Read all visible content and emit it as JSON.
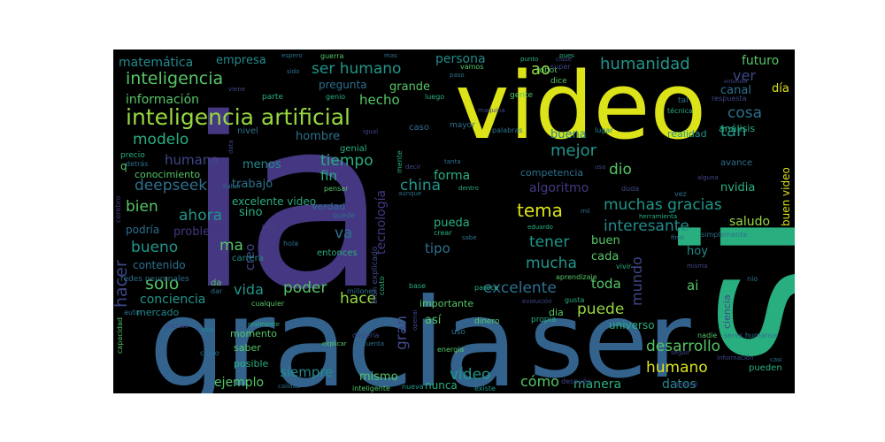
{
  "palette": {
    "deep_purple": "#482677",
    "purple": "#453781",
    "indigo": "#3f4788",
    "blue": "#33638d",
    "steel": "#2d708e",
    "teal": "#238a8d",
    "sea": "#1f968b",
    "green": "#29af7f",
    "lime_green": "#55c667",
    "yellow_green": "#95d840",
    "yellow": "#dce319"
  },
  "words": [
    {
      "text": "ia",
      "color": "purple"
    },
    {
      "text": "si",
      "color": "green"
    },
    {
      "text": "gracia",
      "color": "blue"
    },
    {
      "text": "video",
      "color": "yellow"
    },
    {
      "text": "ser",
      "color": "blue"
    },
    {
      "text": "inteligencia artificial",
      "color": "yellow_green"
    },
    {
      "text": "inteligencia",
      "color": "lime_green"
    },
    {
      "text": "ser humano",
      "color": "sea"
    },
    {
      "text": "humanidad",
      "color": "sea"
    },
    {
      "text": "matemática",
      "color": "teal"
    },
    {
      "text": "empresa",
      "color": "teal"
    },
    {
      "text": "persona",
      "color": "teal"
    },
    {
      "text": "ao",
      "color": "yellow_green"
    },
    {
      "text": "información",
      "color": "lime_green"
    },
    {
      "text": "pregunta",
      "color": "steel"
    },
    {
      "text": "grande",
      "color": "lime_green"
    },
    {
      "text": "hecho",
      "color": "lime_green"
    },
    {
      "text": "futuro",
      "color": "lime_green"
    },
    {
      "text": "ver",
      "color": "indigo"
    },
    {
      "text": "canal",
      "color": "steel"
    },
    {
      "text": "día",
      "color": "yellow"
    },
    {
      "text": "cosa",
      "color": "steel"
    },
    {
      "text": "tan",
      "color": "sea"
    },
    {
      "text": "modelo",
      "color": "green"
    },
    {
      "text": "mejor",
      "color": "sea"
    },
    {
      "text": "humana",
      "color": "indigo"
    },
    {
      "text": "tiempo",
      "color": "green"
    },
    {
      "text": "dio",
      "color": "lime_green"
    },
    {
      "text": "deepseek",
      "color": "steel"
    },
    {
      "text": "menos",
      "color": "teal"
    },
    {
      "text": "fin",
      "color": "green"
    },
    {
      "text": "forma",
      "color": "green"
    },
    {
      "text": "china",
      "color": "sea"
    },
    {
      "text": "algoritmo",
      "color": "purple"
    },
    {
      "text": "muchas gracias",
      "color": "sea"
    },
    {
      "text": "bien",
      "color": "lime_green"
    },
    {
      "text": "ahora",
      "color": "sea"
    },
    {
      "text": "tema",
      "color": "yellow"
    },
    {
      "text": "interesante",
      "color": "teal"
    },
    {
      "text": "saludo",
      "color": "yellow_green"
    },
    {
      "text": "bueno",
      "color": "sea"
    },
    {
      "text": "ma",
      "color": "lime_green"
    },
    {
      "text": "va",
      "color": "steel"
    },
    {
      "text": "tener",
      "color": "sea"
    },
    {
      "text": "buen",
      "color": "lime_green"
    },
    {
      "text": "cada",
      "color": "lime_green"
    },
    {
      "text": "hacer",
      "color": "indigo"
    },
    {
      "text": "solo",
      "color": "lime_green"
    },
    {
      "text": "poder",
      "color": "lime_green"
    },
    {
      "text": "mucha",
      "color": "sea"
    },
    {
      "text": "mundo",
      "color": "indigo"
    },
    {
      "text": "toda",
      "color": "lime_green"
    },
    {
      "text": "vida",
      "color": "sea"
    },
    {
      "text": "hace",
      "color": "yellow_green"
    },
    {
      "text": "excelente",
      "color": "steel"
    },
    {
      "text": "puede",
      "color": "yellow_green"
    },
    {
      "text": "ai",
      "color": "lime_green"
    },
    {
      "text": "conciencia",
      "color": "sea"
    },
    {
      "text": "desarrollo",
      "color": "lime_green"
    },
    {
      "text": "humano",
      "color": "yellow"
    },
    {
      "text": "vídeo",
      "color": "sea"
    },
    {
      "text": "cómo",
      "color": "lime_green"
    },
    {
      "text": "manera",
      "color": "green"
    },
    {
      "text": "datos",
      "color": "teal"
    },
    {
      "text": "siempre",
      "color": "teal"
    },
    {
      "text": "mismo",
      "color": "lime_green"
    },
    {
      "text": "ejemplo",
      "color": "lime_green"
    },
    {
      "text": "nunca",
      "color": "green"
    },
    {
      "text": "buena",
      "color": "teal"
    },
    {
      "text": "realidad",
      "color": "sea"
    },
    {
      "text": "análisis",
      "color": "green"
    },
    {
      "text": "hoy",
      "color": "teal"
    },
    {
      "text": "buen video",
      "color": "yellow"
    },
    {
      "text": "nvidia",
      "color": "green"
    },
    {
      "text": "hombre",
      "color": "steel"
    },
    {
      "text": "gran",
      "color": "indigo"
    },
    {
      "text": "tecnología",
      "color": "purple"
    },
    {
      "text": "creo",
      "color": "indigo"
    },
    {
      "text": "sino",
      "color": "green"
    },
    {
      "text": "problema",
      "color": "purple"
    },
    {
      "text": "trabajo",
      "color": "steel"
    },
    {
      "text": "excelente video",
      "color": "green"
    },
    {
      "text": "tipo",
      "color": "steel"
    },
    {
      "text": "pueda",
      "color": "green"
    },
    {
      "text": "universo",
      "color": "green"
    },
    {
      "text": "así",
      "color": "lime_green"
    },
    {
      "text": "contenido",
      "color": "steel"
    },
    {
      "text": "podría",
      "color": "steel"
    },
    {
      "text": "mercado",
      "color": "teal"
    },
    {
      "text": "competencia",
      "color": "steel"
    },
    {
      "text": "conocimiento",
      "color": "lime_green"
    },
    {
      "text": "momento",
      "color": "lime_green"
    },
    {
      "text": "saber",
      "color": "lime_green"
    },
    {
      "text": "posible",
      "color": "green"
    },
    {
      "text": "importante",
      "color": "lime_green"
    },
    {
      "text": "carrera",
      "color": "teal"
    },
    {
      "text": "verdad",
      "color": "steel"
    },
    {
      "text": "entonces",
      "color": "green"
    },
    {
      "text": "avance",
      "color": "steel"
    },
    {
      "text": "dia",
      "color": "lime_green"
    },
    {
      "text": "ciencia",
      "color": "indigo"
    },
    {
      "text": "pueden",
      "color": "green"
    },
    {
      "text": "caso",
      "color": "steel"
    },
    {
      "text": "genial",
      "color": "green"
    },
    {
      "text": "nivel",
      "color": "steel"
    },
    {
      "text": "mayor",
      "color": "steel"
    },
    {
      "text": "palabras",
      "color": "steel"
    },
    {
      "text": "lugar",
      "color": "teal"
    },
    {
      "text": "técnica",
      "color": "green"
    },
    {
      "text": "tal",
      "color": "steel"
    },
    {
      "text": "respuesta",
      "color": "indigo"
    },
    {
      "text": "cerebro",
      "color": "purple"
    },
    {
      "text": "precio",
      "color": "green"
    },
    {
      "text": "detrás",
      "color": "steel"
    },
    {
      "text": "q",
      "color": "lime_green"
    },
    {
      "text": "redes neuronales",
      "color": "steel"
    },
    {
      "text": "capacidad",
      "color": "lime_green"
    },
    {
      "text": "sólo",
      "color": "teal"
    },
    {
      "text": "chino",
      "color": "steel"
    },
    {
      "text": "incluso",
      "color": "indigo"
    },
    {
      "text": "realmente",
      "color": "green"
    },
    {
      "text": "auto",
      "color": "steel"
    },
    {
      "text": "da",
      "color": "lime_green"
    },
    {
      "text": "dar",
      "color": "steel"
    },
    {
      "text": "cualquier",
      "color": "lime_green"
    },
    {
      "text": "millones",
      "color": "steel"
    },
    {
      "text": "costo",
      "color": "green"
    },
    {
      "text": "bien explicado",
      "color": "indigo"
    },
    {
      "text": "base",
      "color": "green"
    },
    {
      "text": "parece",
      "color": "green"
    },
    {
      "text": "aprendizaje",
      "color": "lime_green"
    },
    {
      "text": "evolución",
      "color": "indigo"
    },
    {
      "text": "gusta",
      "color": "green"
    },
    {
      "text": "propia",
      "color": "green"
    },
    {
      "text": "dinero",
      "color": "lime_green"
    },
    {
      "text": "uso",
      "color": "steel"
    },
    {
      "text": "energía",
      "color": "lime_green"
    },
    {
      "text": "debería",
      "color": "indigo"
    },
    {
      "text": "explicar",
      "color": "lime_green"
    },
    {
      "text": "cuenta",
      "color": "steel"
    },
    {
      "text": "openai",
      "color": "indigo"
    },
    {
      "text": "nueva",
      "color": "sea"
    },
    {
      "text": "inteligente",
      "color": "lime_green"
    },
    {
      "text": "calidad",
      "color": "steel"
    },
    {
      "text": "existe",
      "color": "sea"
    },
    {
      "text": "después",
      "color": "indigo"
    },
    {
      "text": "general",
      "color": "indigo"
    },
    {
      "text": "casi",
      "color": "steel"
    },
    {
      "text": "información",
      "color": "indigo"
    },
    {
      "text": "seres humanos",
      "color": "steel"
    },
    {
      "text": "nadie",
      "color": "lime_green"
    },
    {
      "text": "seguir",
      "color": "indigo"
    },
    {
      "text": "nio",
      "color": "steel"
    },
    {
      "text": "misma",
      "color": "indigo"
    },
    {
      "text": "final",
      "color": "steel"
    },
    {
      "text": "simplemente",
      "color": "steel"
    },
    {
      "text": "vez",
      "color": "steel"
    },
    {
      "text": "alguna",
      "color": "indigo"
    },
    {
      "text": "herramienta",
      "color": "green"
    },
    {
      "text": "mil",
      "color": "steel"
    },
    {
      "text": "duda",
      "color": "indigo"
    },
    {
      "text": "vivir",
      "color": "green"
    },
    {
      "text": "eduardo",
      "color": "green"
    },
    {
      "text": "crear",
      "color": "green"
    },
    {
      "text": "sabe",
      "color": "steel"
    },
    {
      "text": "dentro",
      "color": "green"
    },
    {
      "text": "tanta",
      "color": "steel"
    },
    {
      "text": "decir",
      "color": "indigo"
    },
    {
      "text": "aunque",
      "color": "steel"
    },
    {
      "text": "queda",
      "color": "steel"
    },
    {
      "text": "pensar",
      "color": "lime_green"
    },
    {
      "text": "mente",
      "color": "green"
    },
    {
      "text": "hola",
      "color": "steel"
    },
    {
      "text": "lado",
      "color": "indigo"
    },
    {
      "text": "haber",
      "color": "steel"
    },
    {
      "text": "data",
      "color": "indigo"
    },
    {
      "text": "parte",
      "color": "green"
    },
    {
      "text": "viene",
      "color": "indigo"
    },
    {
      "text": "genio",
      "color": "green"
    },
    {
      "text": "luego",
      "color": "green"
    },
    {
      "text": "gente",
      "color": "lime_green"
    },
    {
      "text": "dice",
      "color": "lime_green"
    },
    {
      "text": "maquina",
      "color": "indigo"
    },
    {
      "text": "clase",
      "color": "indigo"
    },
    {
      "text": "robot",
      "color": "lime_green"
    },
    {
      "text": "super",
      "color": "indigo"
    },
    {
      "text": "pues",
      "color": "green"
    },
    {
      "text": "punto",
      "color": "green"
    },
    {
      "text": "paso",
      "color": "steel"
    },
    {
      "text": "vamos",
      "color": "lime_green"
    },
    {
      "text": "guerra",
      "color": "lime_green"
    },
    {
      "text": "espero",
      "color": "steel"
    },
    {
      "text": "sido",
      "color": "steel"
    },
    {
      "text": "usa",
      "color": "indigo"
    },
    {
      "text": "entender",
      "color": "indigo"
    },
    {
      "text": "igual",
      "color": "indigo"
    },
    {
      "text": "mas",
      "color": "steel"
    }
  ]
}
